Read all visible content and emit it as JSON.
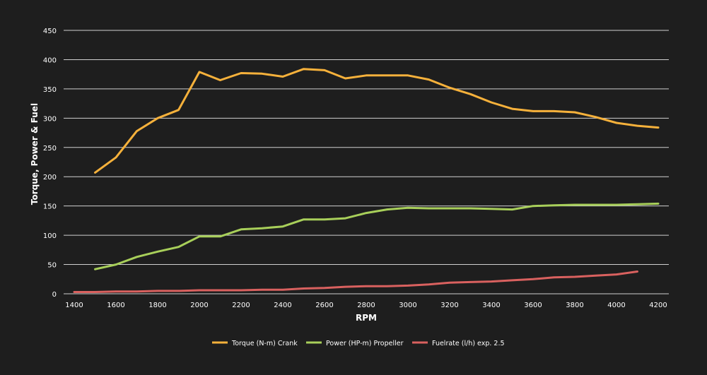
{
  "chart_data": {
    "type": "line",
    "xlabel": "RPM",
    "ylabel": "Torque, Power & Fuel",
    "xlim": [
      1400,
      4200
    ],
    "ylim": [
      0,
      450
    ],
    "x_ticks": [
      1400,
      1600,
      1800,
      2000,
      2200,
      2400,
      2600,
      2800,
      3000,
      3200,
      3400,
      3600,
      3800,
      4000,
      4200
    ],
    "y_ticks": [
      0,
      50,
      100,
      150,
      200,
      250,
      300,
      350,
      400,
      450
    ],
    "grid": "horizontal",
    "legend_position": "bottom-center",
    "series": [
      {
        "name": "Torque (N-m) Crank",
        "color": "#f6b13b",
        "x": [
          1500,
          1600,
          1700,
          1800,
          1900,
          2000,
          2100,
          2200,
          2300,
          2400,
          2500,
          2600,
          2700,
          2800,
          2900,
          3000,
          3100,
          3200,
          3300,
          3400,
          3500,
          3600,
          3700,
          3800,
          3900,
          4000,
          4100,
          4200
        ],
        "values": [
          207,
          233,
          278,
          300,
          314,
          379,
          365,
          377,
          376,
          371,
          384,
          382,
          368,
          373,
          373,
          373,
          366,
          352,
          341,
          327,
          316,
          312,
          312,
          310,
          302,
          292,
          287,
          284
        ]
      },
      {
        "name": "Power (HP-m) Propeller",
        "color": "#a8cf5a",
        "x": [
          1500,
          1600,
          1700,
          1800,
          1900,
          2000,
          2100,
          2200,
          2300,
          2400,
          2500,
          2600,
          2700,
          2800,
          2900,
          3000,
          3100,
          3200,
          3300,
          3400,
          3500,
          3600,
          3700,
          3800,
          3900,
          4000,
          4100,
          4200
        ],
        "values": [
          42,
          50,
          63,
          72,
          80,
          98,
          98,
          110,
          112,
          115,
          127,
          127,
          129,
          138,
          144,
          147,
          146,
          146,
          146,
          145,
          144,
          150,
          151,
          152,
          152,
          152,
          153,
          154
        ]
      },
      {
        "name": "Fuelrate (l/h) exp. 2.5",
        "color": "#d9615f",
        "x": [
          1400,
          1500,
          1600,
          1700,
          1800,
          1900,
          2000,
          2100,
          2200,
          2300,
          2400,
          2500,
          2600,
          2700,
          2800,
          2900,
          3000,
          3100,
          3200,
          3300,
          3400,
          3500,
          3600,
          3700,
          3800,
          3900,
          4000,
          4100
        ],
        "values": [
          3,
          3,
          4,
          4,
          5,
          5,
          6,
          6,
          6,
          7,
          7,
          9,
          10,
          12,
          13,
          13,
          14,
          16,
          19,
          20,
          21,
          23,
          25,
          28,
          29,
          31,
          33,
          38
        ]
      }
    ]
  }
}
